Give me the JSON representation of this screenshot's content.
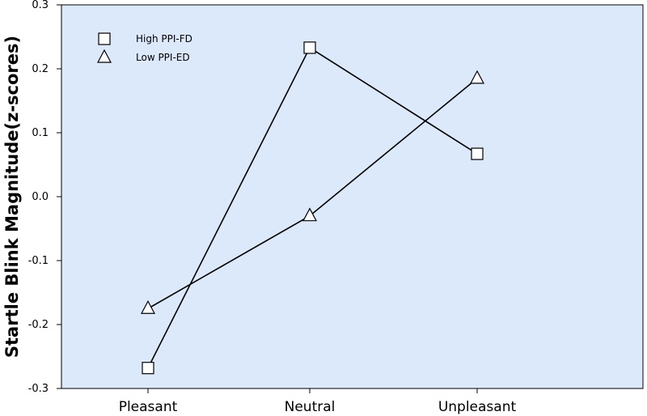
{
  "chart_data": {
    "type": "line",
    "title": "",
    "xlabel": "",
    "ylabel": "Startle Blink Magnitude(z-scores)",
    "categories": [
      "Pleasant",
      "Neutral",
      "Unpleasant"
    ],
    "ylim": [
      -0.3,
      0.3
    ],
    "yticks": [
      -0.3,
      -0.2,
      -0.1,
      0.0,
      0.1,
      0.2,
      0.3
    ],
    "ytick_labels": [
      "-0.3",
      "-0.2",
      "-0.1",
      "0.0",
      "0.1",
      "0.2",
      "0.3"
    ],
    "grid": false,
    "legend_position": "top-left",
    "colors": {
      "plot_background": "#dbe9fb",
      "line": "#000000",
      "marker_fill": "#ffffff"
    },
    "series": [
      {
        "name": "High PPI-FD",
        "marker": "square",
        "values": [
          -0.268,
          0.233,
          0.067
        ]
      },
      {
        "name": "Low PPI-ED",
        "marker": "triangle",
        "values": [
          -0.175,
          -0.03,
          0.185
        ]
      }
    ]
  }
}
